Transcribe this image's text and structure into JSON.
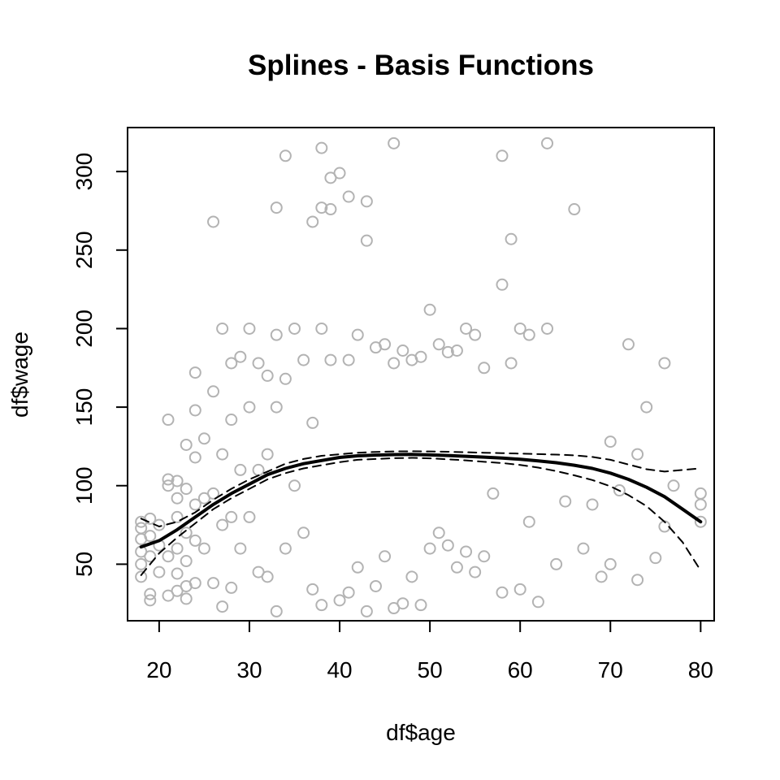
{
  "chart_data": {
    "type": "scatter",
    "title": "Splines - Basis Functions",
    "xlabel": "df$age",
    "ylabel": "df$wage",
    "xlim": [
      16.5,
      81.5
    ],
    "ylim": [
      14,
      328
    ],
    "xticks": [
      20,
      30,
      40,
      50,
      60,
      70,
      80
    ],
    "yticks": [
      50,
      100,
      150,
      200,
      250,
      300
    ],
    "grid": false,
    "legend": "none",
    "colors": {
      "points": "#b3b3b3",
      "fit": "#000000",
      "band": "#000000"
    },
    "series": [
      {
        "kind": "points",
        "marker": "open-circle",
        "x": [
          18,
          18,
          18,
          18,
          18,
          18,
          19,
          19,
          19,
          19,
          19,
          20,
          20,
          20,
          21,
          21,
          21,
          21,
          21,
          22,
          22,
          22,
          22,
          22,
          22,
          23,
          23,
          23,
          23,
          23,
          23,
          24,
          24,
          24,
          24,
          24,
          24,
          25,
          25,
          25,
          26,
          26,
          26,
          26,
          27,
          27,
          27,
          27,
          28,
          28,
          28,
          28,
          29,
          29,
          29,
          30,
          30,
          30,
          31,
          31,
          31,
          32,
          32,
          32,
          33,
          33,
          33,
          33,
          34,
          34,
          34,
          35,
          35,
          36,
          36,
          37,
          37,
          37,
          38,
          38,
          38,
          38,
          39,
          39,
          39,
          40,
          40,
          41,
          41,
          41,
          42,
          42,
          43,
          43,
          43,
          44,
          44,
          45,
          45,
          46,
          46,
          46,
          47,
          47,
          48,
          48,
          49,
          49,
          50,
          50,
          51,
          51,
          52,
          52,
          53,
          53,
          54,
          54,
          55,
          55,
          56,
          56,
          57,
          58,
          58,
          58,
          59,
          59,
          60,
          60,
          61,
          61,
          62,
          63,
          63,
          64,
          65,
          66,
          67,
          68,
          69,
          70,
          70,
          71,
          72,
          73,
          73,
          74,
          75,
          76,
          76,
          77,
          80,
          80,
          80
        ],
        "y": [
          42,
          50,
          58,
          66,
          73,
          77,
          27,
          31,
          55,
          68,
          79,
          45,
          62,
          75,
          30,
          55,
          100,
          104,
          142,
          33,
          44,
          60,
          80,
          92,
          103,
          28,
          36,
          52,
          70,
          98,
          126,
          38,
          65,
          88,
          118,
          148,
          172,
          60,
          92,
          130,
          38,
          95,
          160,
          268,
          23,
          75,
          120,
          200,
          35,
          80,
          142,
          178,
          60,
          110,
          182,
          80,
          150,
          200,
          45,
          110,
          178,
          42,
          120,
          170,
          20,
          150,
          196,
          277,
          60,
          168,
          310,
          100,
          200,
          70,
          180,
          34,
          140,
          268,
          24,
          200,
          315,
          277,
          296,
          180,
          276,
          27,
          299,
          32,
          180,
          284,
          48,
          196,
          20,
          256,
          281,
          36,
          188,
          55,
          190,
          22,
          178,
          318,
          25,
          186,
          42,
          180,
          24,
          182,
          60,
          212,
          70,
          190,
          62,
          185,
          48,
          186,
          58,
          200,
          45,
          196,
          55,
          175,
          95,
          32,
          228,
          310,
          178,
          257,
          34,
          200,
          77,
          196,
          26,
          200,
          318,
          50,
          90,
          276,
          60,
          88,
          42,
          50,
          128,
          97,
          190,
          40,
          120,
          150,
          54,
          74,
          178,
          100,
          77,
          88,
          95
        ]
      },
      {
        "name": "fit",
        "kind": "line",
        "x": [
          18,
          20,
          22,
          24,
          26,
          28,
          30,
          32,
          34,
          36,
          38,
          40,
          42,
          44,
          46,
          48,
          50,
          52,
          54,
          56,
          58,
          60,
          62,
          64,
          66,
          68,
          70,
          72,
          74,
          76,
          78,
          80
        ],
        "y": [
          61,
          65,
          72,
          80,
          88,
          95,
          101,
          107,
          111,
          114,
          116,
          118,
          119,
          119.5,
          119.8,
          119.9,
          119.6,
          119.2,
          118.7,
          118.2,
          117.6,
          116.8,
          115.8,
          114.6,
          113,
          111,
          108,
          104,
          99,
          93,
          85,
          77
        ]
      },
      {
        "name": "upper",
        "kind": "dashed",
        "x": [
          18,
          20,
          22,
          24,
          26,
          28,
          30,
          32,
          34,
          36,
          38,
          40,
          42,
          44,
          46,
          48,
          50,
          52,
          54,
          56,
          58,
          60,
          62,
          64,
          66,
          68,
          70,
          72,
          74,
          76,
          78,
          80
        ],
        "y": [
          79,
          74,
          77,
          83,
          91,
          98,
          104,
          109,
          114,
          117,
          119,
          120,
          121,
          121.5,
          121.8,
          121.9,
          121.8,
          121.6,
          121.3,
          121,
          120.7,
          120.4,
          120.1,
          119.8,
          119.3,
          118.3,
          116.5,
          113.5,
          110.5,
          109,
          110,
          111
        ]
      },
      {
        "name": "lower",
        "kind": "dashed",
        "x": [
          18,
          20,
          22,
          24,
          26,
          28,
          30,
          32,
          34,
          36,
          38,
          40,
          42,
          44,
          46,
          48,
          50,
          52,
          54,
          56,
          58,
          60,
          62,
          64,
          66,
          68,
          70,
          72,
          74,
          76,
          78,
          80
        ],
        "y": [
          43,
          57,
          67,
          76,
          85,
          92,
          98,
          104,
          108,
          111,
          113,
          115,
          116.5,
          117,
          117.5,
          117.7,
          117.4,
          116.8,
          116.1,
          115.2,
          114.4,
          113.2,
          111.5,
          109.3,
          106.6,
          103.6,
          99.6,
          94,
          87,
          77,
          64,
          46
        ]
      }
    ]
  }
}
